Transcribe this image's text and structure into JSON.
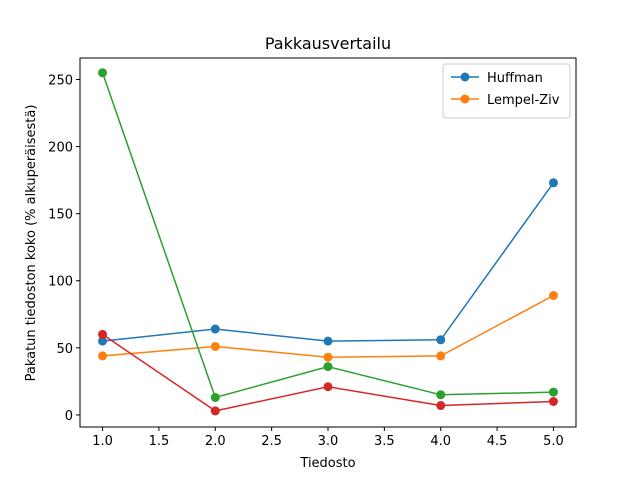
{
  "chart_data": {
    "type": "line",
    "title": "Pakkausvertailu",
    "xlabel": "Tiedosto",
    "ylabel": "Pakatun tiedoston koko (% alkuperäisestä)",
    "xlim": [
      0.8,
      5.2
    ],
    "ylim": [
      -9,
      266
    ],
    "x_ticks": [
      1.0,
      1.5,
      2.0,
      2.5,
      3.0,
      3.5,
      4.0,
      4.5,
      5.0
    ],
    "y_ticks": [
      0,
      50,
      100,
      150,
      200,
      250
    ],
    "grid": false,
    "legend_position": "top-right",
    "x": [
      1,
      2,
      3,
      4,
      5
    ],
    "series": [
      {
        "name": "Huffman",
        "color": "#1f77b4",
        "values": [
          55,
          64,
          55,
          56,
          173
        ]
      },
      {
        "name": "Lempel-Ziv",
        "color": "#ff7f0e",
        "values": [
          44,
          51,
          43,
          44,
          89
        ]
      },
      {
        "color": "#2ca02c",
        "values": [
          255,
          13,
          36,
          15,
          17
        ]
      },
      {
        "color": "#d62728",
        "values": [
          60,
          3,
          21,
          7,
          10
        ]
      }
    ]
  }
}
